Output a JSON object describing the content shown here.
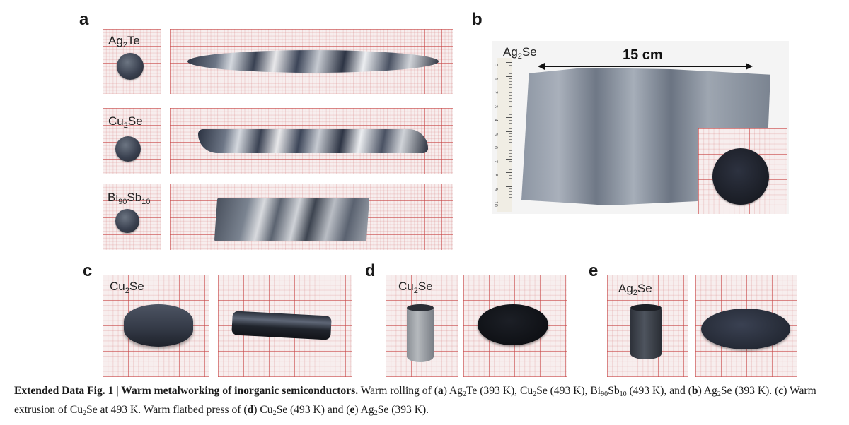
{
  "panel_letters": {
    "a": "a",
    "b": "b",
    "c": "c",
    "d": "d",
    "e": "e"
  },
  "panel_a": {
    "row1_label": {
      "base": "Ag",
      "sub1": "2",
      "rest": "Te"
    },
    "row2_label": {
      "base": "Cu",
      "sub1": "2",
      "rest": "Se"
    },
    "row3_label": {
      "base": "Bi",
      "sub1": "90",
      "mid": "Sb",
      "sub2": "10"
    }
  },
  "panel_b": {
    "label": {
      "base": "Ag",
      "sub1": "2",
      "rest": "Se"
    },
    "dimension": "15 cm",
    "ruler_marks": [
      "0",
      "1",
      "2",
      "3",
      "4",
      "5",
      "6",
      "7",
      "8",
      "9",
      "10"
    ],
    "ruler_unit": "cm"
  },
  "panel_c": {
    "label": {
      "base": "Cu",
      "sub1": "2",
      "rest": "Se"
    }
  },
  "panel_d": {
    "label": {
      "base": "Cu",
      "sub1": "2",
      "rest": "Se"
    }
  },
  "panel_e": {
    "label": {
      "base": "Ag",
      "sub1": "2",
      "rest": "Se"
    }
  },
  "caption": {
    "bold_lead": "Extended Data Fig. 1 | Warm metalworking of inorganic semiconductors.",
    "t1": " Warm rolling of (",
    "a": "a",
    "t2": ") Ag",
    "s1": "2",
    "t3": "Te (393 K), Cu",
    "s2": "2",
    "t4": "Se (493 K), Bi",
    "s3": "90",
    "t5": "Sb",
    "s4": "10",
    "t6": " (493 K), and (",
    "b": "b",
    "t7": ") Ag",
    "s5": "2",
    "t8": "Se (393 K). (",
    "c": "c",
    "t9": ") Warm extrusion of Cu",
    "s6": "2",
    "t10": "Se at 493 K. Warm flatbed press of (",
    "d": "d",
    "t11": ") Cu",
    "s7": "2",
    "t12": "Se (493 K) and (",
    "e": "e",
    "t13": ") Ag",
    "s8": "2",
    "t14": "Se (393 K)."
  }
}
